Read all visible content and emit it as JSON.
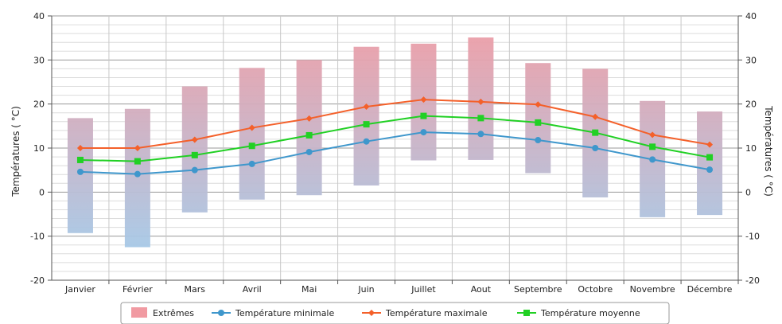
{
  "chart_data": {
    "type": "bar+line",
    "categories": [
      "Janvier",
      "Février",
      "Mars",
      "Avril",
      "Mai",
      "Juin",
      "Juillet",
      "Aout",
      "Septembre",
      "Octobre",
      "Novembre",
      "Décembre"
    ],
    "ylabel_left": "Températures ( °C)",
    "ylabel_right": "Températures ( °C)",
    "ylim": [
      -20,
      40
    ],
    "yticks": [
      -20,
      -10,
      0,
      10,
      20,
      30,
      40
    ],
    "grid": true,
    "legend_position": "bottom",
    "extremes": {
      "name": "Extrêmes",
      "low": [
        -9.3,
        -12.5,
        -4.6,
        -1.7,
        -0.7,
        1.5,
        7.2,
        7.3,
        4.3,
        -1.2,
        -5.7,
        -5.2
      ],
      "high": [
        16.8,
        18.9,
        24.0,
        28.2,
        30.0,
        33.0,
        33.7,
        35.1,
        29.3,
        28.0,
        20.7,
        18.3
      ]
    },
    "series": [
      {
        "name": "Température minimale",
        "color": "#3f97cc",
        "marker": "circle",
        "values": [
          4.6,
          4.1,
          5.0,
          6.4,
          9.1,
          11.5,
          13.6,
          13.2,
          11.8,
          10.0,
          7.4,
          5.1
        ]
      },
      {
        "name": "Température maximale",
        "color": "#f4602a",
        "marker": "diamond",
        "values": [
          10.0,
          10.0,
          11.9,
          14.6,
          16.7,
          19.4,
          21.0,
          20.5,
          19.9,
          17.1,
          13.0,
          10.8
        ]
      },
      {
        "name": "Température moyenne",
        "color": "#21d024",
        "marker": "square",
        "values": [
          7.3,
          7.0,
          8.4,
          10.5,
          12.9,
          15.4,
          17.3,
          16.8,
          15.8,
          13.5,
          10.3,
          7.9
        ]
      }
    ],
    "legend": {
      "items": [
        "Extrêmes",
        "Température minimale",
        "Température maximale",
        "Température moyenne"
      ]
    },
    "colors": {
      "extremes_top": "#f0a2aa",
      "extremes_bottom": "#a2d0ee",
      "grid": "#bfbfbf"
    }
  }
}
